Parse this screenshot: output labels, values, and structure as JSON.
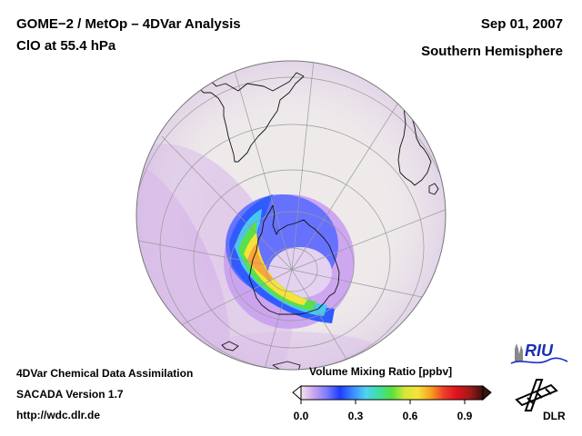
{
  "header": {
    "title": "GOME−2 / MetOp – 4DVar Analysis",
    "subtitle": "ClO at 55.4 hPa",
    "date": "Sep 01, 2007",
    "region": "Southern Hemisphere"
  },
  "footer": {
    "line1": "4DVar Chemical Data Assimilation",
    "line2": "SACADA Version 1.7",
    "line3": "http://wdc.dlr.de"
  },
  "colorbar": {
    "title": "Volume Mixing Ratio [ppbv]",
    "range": [
      0.0,
      1.0
    ],
    "ticks": [
      {
        "value": 0.0,
        "label": "0.0"
      },
      {
        "value": 0.3,
        "label": "0.3"
      },
      {
        "value": 0.6,
        "label": "0.6"
      },
      {
        "value": 0.9,
        "label": "0.9"
      }
    ],
    "colors": [
      "#f3e6ea",
      "#c9a3f0",
      "#7b7bff",
      "#1e3cff",
      "#3c8cff",
      "#4fd2f0",
      "#3de0a0",
      "#5ae03c",
      "#d6e83a",
      "#f7e23a",
      "#f7a020",
      "#f03c28",
      "#e01020",
      "#a01a18",
      "#3c1010"
    ]
  },
  "logos": {
    "riu": "RIU",
    "dlr": "DLR"
  },
  "map": {
    "projection": "orthographic",
    "view": "Southern Hemisphere",
    "background_color": "#eeeaea"
  }
}
